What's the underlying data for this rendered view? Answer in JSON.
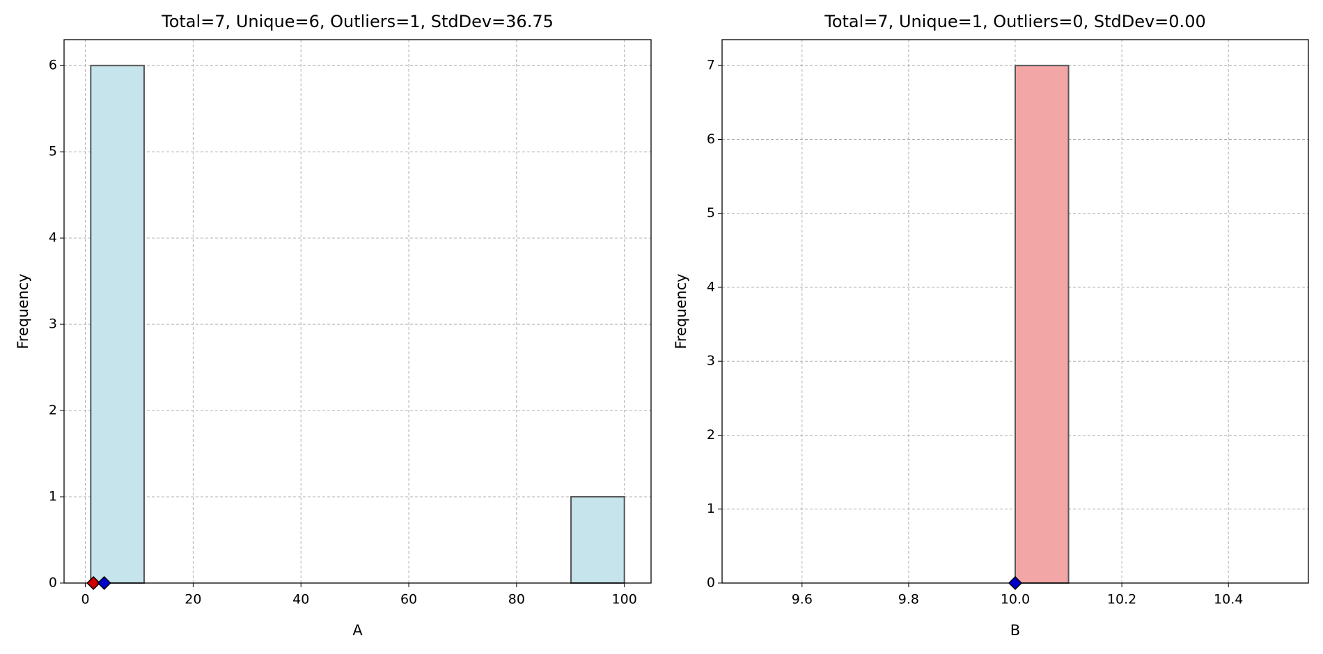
{
  "chart_data": [
    {
      "type": "histogram",
      "title": "Total=7, Unique=6, Outliers=1, StdDev=36.75",
      "xlabel": "A",
      "ylabel": "Frequency",
      "bins": [
        1,
        10.9,
        20.8,
        30.7,
        40.6,
        50.5,
        60.4,
        70.3,
        80.2,
        90.1,
        100
      ],
      "values": [
        6,
        0,
        0,
        0,
        0,
        0,
        0,
        0,
        0,
        1
      ],
      "color": "#c5e4ec",
      "edgecolor": "#555555",
      "markers": [
        {
          "x": 1.5,
          "color": "#d00000"
        },
        {
          "x": 3.5,
          "color": "#0000cc"
        }
      ],
      "xlim": [
        -3.95,
        104.95
      ],
      "xticks": [
        0,
        20,
        40,
        60,
        80,
        100
      ],
      "ylim": [
        0,
        6.3
      ],
      "yticks": [
        0,
        1,
        2,
        3,
        4,
        5,
        6
      ],
      "grid": true
    },
    {
      "type": "histogram",
      "title": "Total=7, Unique=1, Outliers=0, StdDev=0.00",
      "xlabel": "B",
      "ylabel": "Frequency",
      "bins": [
        9.5,
        9.6,
        9.7,
        9.8,
        9.9,
        10.0,
        10.1,
        10.2,
        10.3,
        10.4,
        10.5
      ],
      "values": [
        0,
        0,
        0,
        0,
        0,
        7,
        0,
        0,
        0,
        0
      ],
      "color": "#f3a6a6",
      "edgecolor": "#555555",
      "markers": [
        {
          "x": 10.0,
          "color": "#0000cc"
        }
      ],
      "xlim": [
        9.45,
        10.55
      ],
      "xticks": [
        9.6,
        9.8,
        {
          "value": 10.0,
          "label": "10.0"
        },
        10.2,
        10.4
      ],
      "ylim": [
        0,
        7.35
      ],
      "yticks": [
        0,
        1,
        2,
        3,
        4,
        5,
        6,
        7
      ],
      "grid": true
    }
  ]
}
